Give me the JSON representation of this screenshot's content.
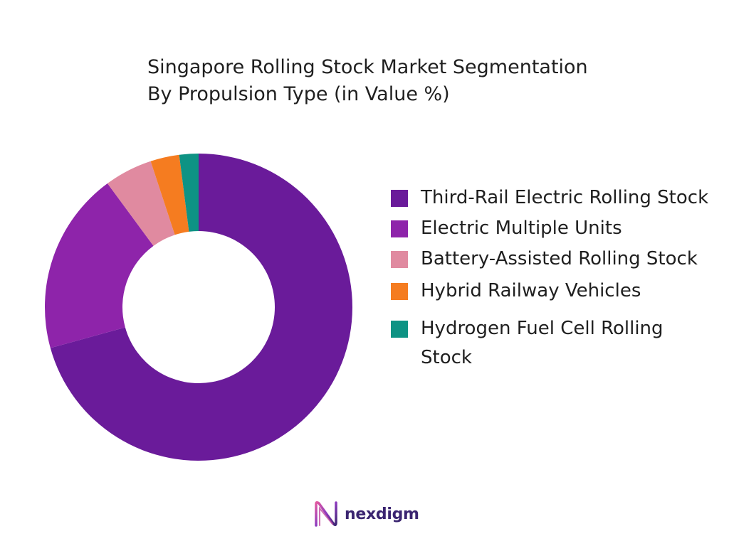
{
  "chart_data": {
    "type": "pie",
    "donut": true,
    "title_lines": [
      "Singapore Rolling Stock Market Segmentation",
      "By Propulsion Type (in Value %)"
    ],
    "categories": [
      "Third-Rail Electric Rolling Stock",
      "Electric Multiple Units",
      "Battery-Assisted Rolling Stock",
      "Hybrid Railway Vehicles",
      "Hydrogen Fuel Cell Rolling Stock"
    ],
    "values": [
      70,
      19,
      5,
      3,
      2
    ],
    "colors": [
      "#6a1b9a",
      "#8e24aa",
      "#e08aa0",
      "#f57c20",
      "#0e9384"
    ],
    "legend_position": "right"
  },
  "legend": {
    "items": [
      {
        "label": "Third-Rail Electric Rolling Stock",
        "color": "#6a1b9a"
      },
      {
        "label": "Electric Multiple Units",
        "color": "#8e24aa"
      },
      {
        "label": "Battery-Assisted Rolling Stock",
        "color": "#e08aa0"
      },
      {
        "label": "Hybrid Railway Vehicles",
        "color": "#f57c20"
      },
      {
        "label": "Hydrogen Fuel Cell Rolling Stock",
        "color": "#0e9384"
      }
    ]
  },
  "branding": {
    "logo_text": "nexdigm",
    "logo_icon": "nexdigm-logo-icon",
    "logo_color": "#3a2470"
  }
}
